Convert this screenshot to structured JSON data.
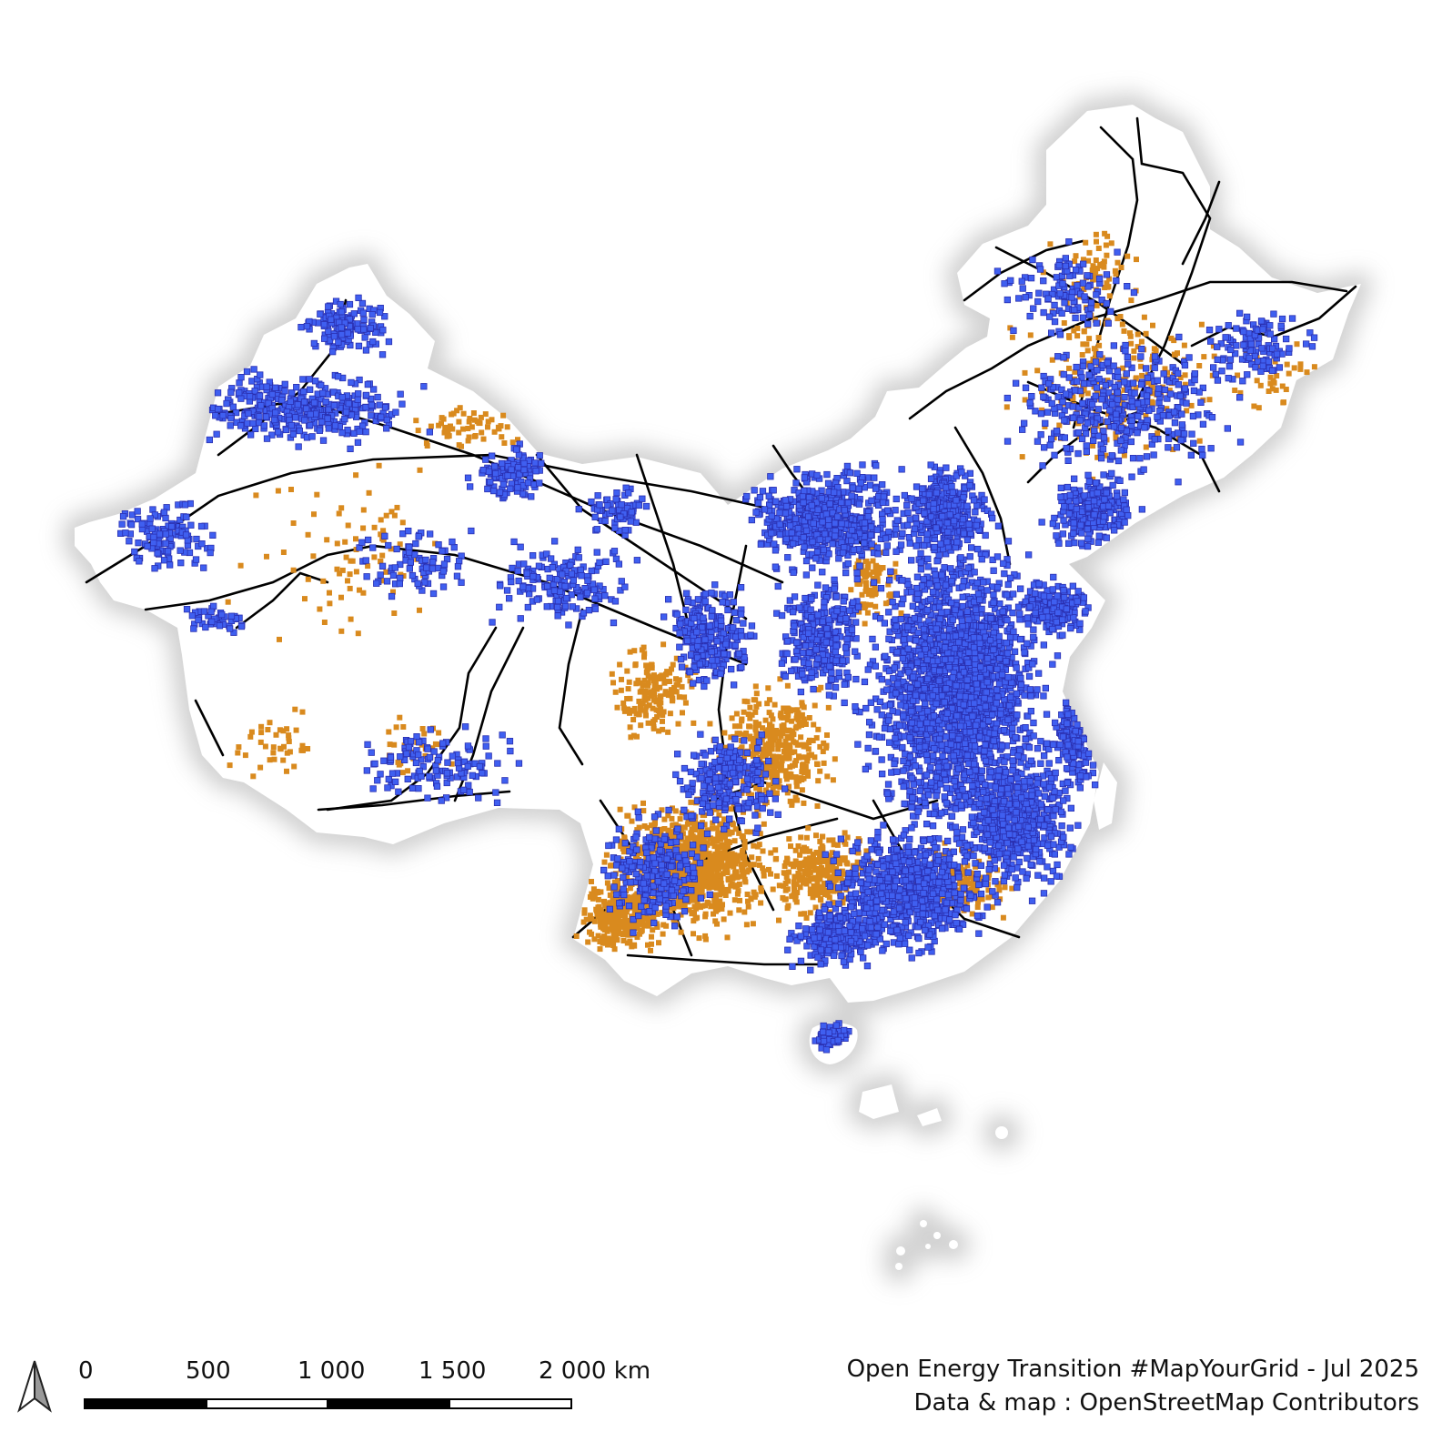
{
  "map": {
    "colors": {
      "background": "#ffffff",
      "land": "#ffffff",
      "land_halo": "#c9c9c9",
      "substation_fill": "#3f5ff0",
      "substation_stroke": "#2a2fb0",
      "plant_color": "#d98a1e",
      "line_color": "#000000"
    },
    "layers": [
      "country-outline",
      "power-lines",
      "power-plants",
      "substations"
    ]
  },
  "north_arrow": {
    "icon": "north-arrow-icon"
  },
  "scale_bar": {
    "labels": [
      "0",
      "500",
      "1 000",
      "1 500",
      "2 000 km"
    ]
  },
  "credits": {
    "line1": "Open Energy Transition #MapYourGrid - Jul 2025",
    "line2": "Data & map : OpenStreetMap Contributors"
  }
}
